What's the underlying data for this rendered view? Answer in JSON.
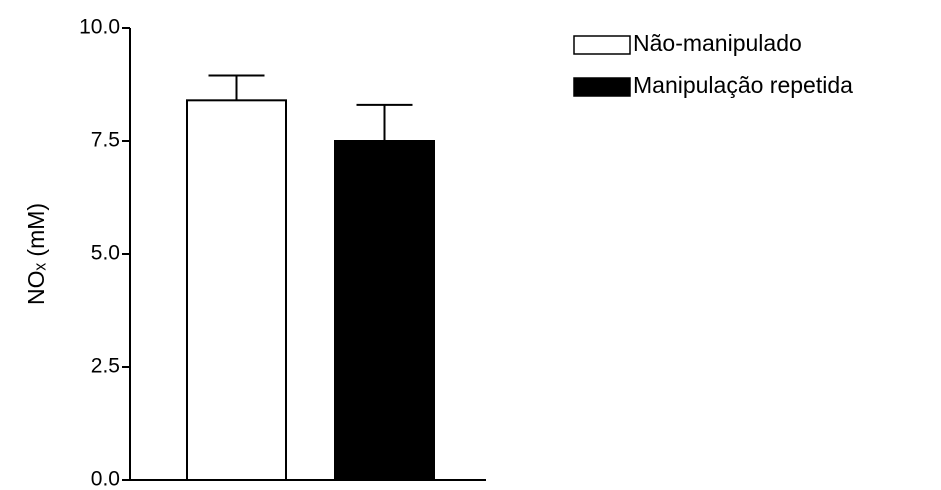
{
  "chart_data": {
    "type": "bar",
    "ylabel": "NOₓ (mM)",
    "categories": [
      null
    ],
    "series": [
      {
        "name": "Não-manipulado",
        "color": "#ffffff",
        "values": [
          8.4
        ],
        "errors": [
          0.55
        ]
      },
      {
        "name": "Manipulação repetida",
        "color": "#000000",
        "values": [
          7.5
        ],
        "errors": [
          0.8
        ]
      }
    ],
    "ylim": [
      0,
      10
    ],
    "yticks": [
      {
        "value": 0,
        "label": "0.0"
      },
      2.5,
      {
        "value": 5,
        "label": "5.0"
      },
      7.5,
      {
        "value": 10,
        "label": "10.0"
      }
    ],
    "grid": false,
    "legend": "upper right"
  }
}
